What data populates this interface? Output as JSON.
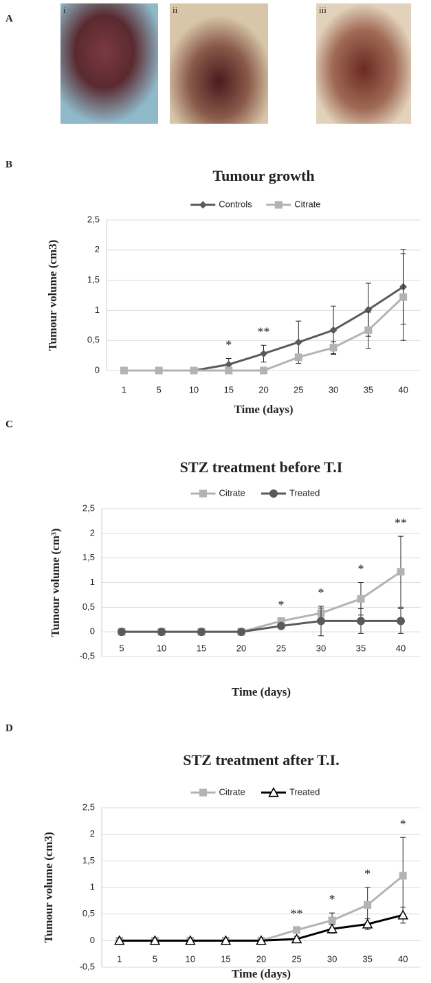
{
  "panel_labels": [
    "A",
    "B",
    "C",
    "D"
  ],
  "photos": [
    "i",
    "ii",
    "iii"
  ],
  "chart_data": [
    {
      "type": "line",
      "title": "Tumour growth",
      "x_label": "Time (days)",
      "y_label": "Tumour volume (cm3)",
      "categories": [
        "1",
        "5",
        "10",
        "15",
        "20",
        "25",
        "30",
        "35",
        "40"
      ],
      "series": [
        {
          "name": "Controls",
          "color": "#5a5a5a",
          "marker": "diamond",
          "values": [
            0,
            0,
            0,
            0.1,
            0.28,
            0.47,
            0.67,
            1.01,
            1.39
          ],
          "errors": [
            0,
            0,
            0,
            0.1,
            0.14,
            0.35,
            0.4,
            0.44,
            0.62
          ]
        },
        {
          "name": "Citrate",
          "color": "#b3b3b3",
          "marker": "square",
          "values": [
            0,
            0,
            0,
            0,
            0,
            0.22,
            0.38,
            0.67,
            1.22
          ],
          "errors": [
            0,
            0,
            0,
            0,
            0,
            0.05,
            0.1,
            0.3,
            0.72
          ]
        }
      ],
      "ylim": [
        0,
        2.5
      ],
      "yticks": [
        0,
        {
          "value": 0.5,
          "label": "0,5"
        },
        1,
        {
          "value": 1.5,
          "label": "1,5"
        },
        2,
        {
          "value": 2.5,
          "label": "2,5"
        }
      ],
      "grid": true,
      "legend": "top",
      "annotations": [
        {
          "label": "*",
          "category": "15"
        },
        {
          "label": "**",
          "category": "20"
        }
      ]
    },
    {
      "type": "line",
      "title": "STZ treatment before T.I",
      "x_label": "Time (days)",
      "y_label": "Tumour volume (cm³)",
      "categories": [
        "5",
        "10",
        "15",
        "20",
        "25",
        "30",
        "35",
        "40"
      ],
      "series": [
        {
          "name": "Citrate",
          "color": "#b3b3b3",
          "marker": "square",
          "values": [
            0,
            0,
            0,
            0,
            0.22,
            0.38,
            0.67,
            1.22
          ],
          "errors": [
            0,
            0,
            0,
            0,
            0.05,
            0.1,
            0.33,
            0.72
          ]
        },
        {
          "name": "Treated",
          "color": "#5a5a5a",
          "marker": "circle",
          "values": [
            0,
            0,
            0,
            0,
            0.12,
            0.22,
            0.22,
            0.22
          ],
          "errors": [
            0,
            0,
            0,
            0,
            0.05,
            0.3,
            0.25,
            0.25
          ]
        }
      ],
      "ylim": [
        -0.5,
        2.5
      ],
      "yticks": [
        {
          "value": -0.5,
          "label": "-0,5"
        },
        0,
        {
          "value": 0.5,
          "label": "0,5"
        },
        1,
        {
          "value": 1.5,
          "label": "1,5"
        },
        2,
        {
          "value": 2.5,
          "label": "2,5"
        }
      ],
      "grid": true,
      "legend": "top",
      "annotations": [
        {
          "label": "*",
          "category": "25"
        },
        {
          "label": "*",
          "category": "30"
        },
        {
          "label": "*",
          "category": "35"
        },
        {
          "label": "**",
          "category": "40"
        }
      ]
    },
    {
      "type": "line",
      "title": "STZ treatment after T.I.",
      "x_label": "Time (days)",
      "y_label": "Tumour volume (cm3)",
      "categories": [
        "1",
        "5",
        "10",
        "15",
        "20",
        "25",
        "30",
        "35",
        "40"
      ],
      "series": [
        {
          "name": "Citrate",
          "color": "#b3b3b3",
          "marker": "square",
          "values": [
            0,
            0,
            0,
            0,
            0,
            0.2,
            0.38,
            0.67,
            1.22
          ],
          "errors": [
            0,
            0,
            0,
            0,
            0,
            0.05,
            0.14,
            0.33,
            0.72
          ]
        },
        {
          "name": "Treated",
          "color": "#000000",
          "marker": "triangle",
          "values": [
            0,
            0,
            0,
            0,
            0,
            0.03,
            0.22,
            0.31,
            0.48
          ],
          "errors": [
            0,
            0,
            0,
            0,
            0,
            0.05,
            0.08,
            0.1,
            0.15
          ]
        }
      ],
      "ylim": [
        -0.5,
        2.5
      ],
      "yticks": [
        {
          "value": -0.5,
          "label": "-0,5"
        },
        0,
        {
          "value": 0.5,
          "label": "0,5"
        },
        1,
        {
          "value": 1.5,
          "label": "1,5"
        },
        2,
        {
          "value": 2.5,
          "label": "2,5"
        }
      ],
      "grid": true,
      "legend": "top",
      "annotations": [
        {
          "label": "**",
          "category": "25"
        },
        {
          "label": "*",
          "category": "30"
        },
        {
          "label": "*",
          "category": "35"
        },
        {
          "label": "*",
          "category": "40"
        }
      ]
    }
  ]
}
